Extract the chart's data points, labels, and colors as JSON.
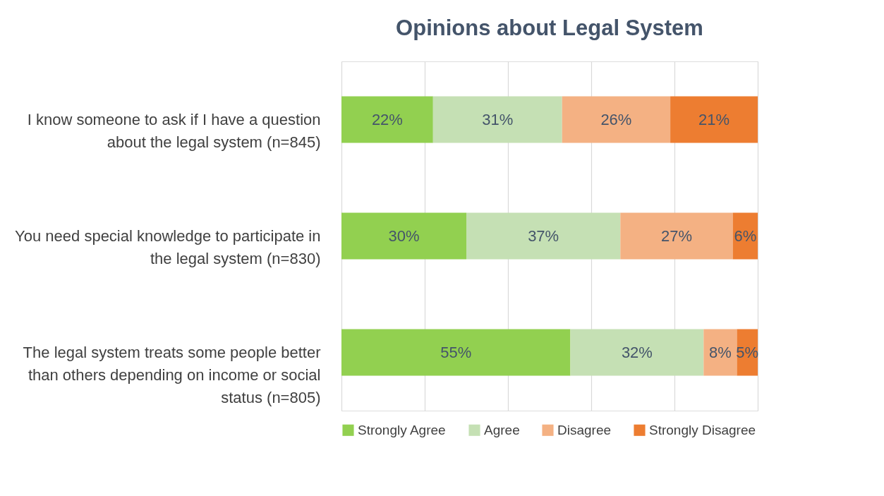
{
  "chart_data": {
    "type": "bar",
    "orientation": "horizontal",
    "stacked": true,
    "title": "Opinions about Legal System",
    "categories": [
      "I know someone to ask if I have a question about the legal system (n=845)",
      "You need special knowledge to participate in the legal system (n=830)",
      "The legal system treats some people better than others depending on income or social status (n=805)"
    ],
    "series": [
      {
        "name": "Strongly Agree",
        "color": "#92d050",
        "values": [
          22,
          30,
          55
        ],
        "value_labels": [
          "22%",
          "30%",
          "55%"
        ]
      },
      {
        "name": "Agree",
        "color": "#c5e0b4",
        "values": [
          31,
          37,
          32
        ],
        "value_labels": [
          "31%",
          "37%",
          "32%"
        ]
      },
      {
        "name": "Disagree",
        "color": "#f4b183",
        "values": [
          26,
          27,
          8
        ],
        "value_labels": [
          "26%",
          "27%",
          "8%"
        ]
      },
      {
        "name": "Strongly Disagree",
        "color": "#ed7d31",
        "values": [
          21,
          6,
          5
        ],
        "value_labels": [
          "21%",
          "6%",
          "5%"
        ]
      }
    ],
    "xlim": [
      0,
      100
    ],
    "xticks": [
      {
        "value": 0,
        "label": null
      },
      {
        "value": 20,
        "label": null
      },
      {
        "value": 40,
        "label": null
      },
      {
        "value": 60,
        "label": null
      },
      {
        "value": 80,
        "label": null
      },
      {
        "value": 100,
        "label": null
      }
    ],
    "grid": "x",
    "legend": "bottom"
  }
}
